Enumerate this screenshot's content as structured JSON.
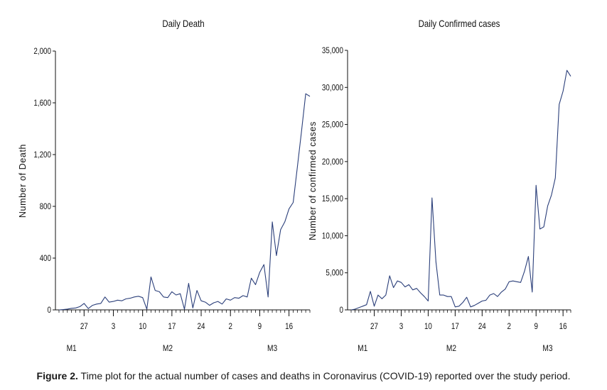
{
  "figure": {
    "caption_label": "Figure 2.",
    "caption_text": "Time plot for the actual number of cases and deaths in Coronavirus (COVID-19) reported over the study period."
  },
  "chart_data": [
    {
      "type": "line",
      "title": "Daily Death",
      "xlabel": "",
      "ylabel": "Number of Death",
      "ylim": [
        0,
        2000
      ],
      "yticks": [
        0,
        400,
        800,
        1200,
        1600,
        2000
      ],
      "ytick_labels": [
        "0",
        "400",
        "800",
        "1,200",
        "1,600",
        "2,000"
      ],
      "xtick_labels": [
        {
          "index": 6,
          "label": "27"
        },
        {
          "index": 13,
          "label": "3"
        },
        {
          "index": 20,
          "label": "10"
        },
        {
          "index": 27,
          "label": "17"
        },
        {
          "index": 34,
          "label": "24"
        },
        {
          "index": 41,
          "label": "2"
        },
        {
          "index": 48,
          "label": "9"
        },
        {
          "index": 55,
          "label": "16"
        }
      ],
      "month_labels": [
        {
          "index": 3,
          "label": "M1"
        },
        {
          "index": 26,
          "label": "M2"
        },
        {
          "index": 51,
          "label": "M3"
        }
      ],
      "grid": false,
      "color": "#2b3f7a",
      "series": [
        {
          "values": [
            0,
            2,
            6,
            12,
            15,
            25,
            50,
            10,
            35,
            45,
            50,
            100,
            60,
            65,
            75,
            70,
            85,
            90,
            100,
            105,
            95,
            5,
            255,
            150,
            140,
            100,
            95,
            140,
            115,
            125,
            5,
            205,
            15,
            150,
            70,
            60,
            35,
            55,
            65,
            45,
            85,
            75,
            95,
            90,
            110,
            100,
            245,
            195,
            290,
            350,
            100,
            680,
            420,
            620,
            680,
            780,
            830,
            1100,
            1380,
            1670,
            1650
          ]
        }
      ]
    },
    {
      "type": "line",
      "title": "Daily Confirmed cases",
      "xlabel": "",
      "ylabel": "Number of confirmed cases",
      "ylim": [
        0,
        35000
      ],
      "yticks": [
        0,
        5000,
        10000,
        15000,
        20000,
        25000,
        30000,
        35000
      ],
      "ytick_labels": [
        "0",
        "5,000",
        "10,000",
        "15,000",
        "20,000",
        "25,000",
        "30,000",
        "35,000"
      ],
      "xtick_labels": [
        {
          "index": 6,
          "label": "27"
        },
        {
          "index": 13,
          "label": "3"
        },
        {
          "index": 20,
          "label": "10"
        },
        {
          "index": 27,
          "label": "17"
        },
        {
          "index": 34,
          "label": "24"
        },
        {
          "index": 41,
          "label": "2"
        },
        {
          "index": 48,
          "label": "9"
        },
        {
          "index": 55,
          "label": "16"
        }
      ],
      "month_labels": [
        {
          "index": 3,
          "label": "M1"
        },
        {
          "index": 26,
          "label": "M2"
        },
        {
          "index": 51,
          "label": "M3"
        }
      ],
      "grid": false,
      "color": "#2b3f7a",
      "series": [
        {
          "values": [
            0,
            100,
            300,
            500,
            700,
            2500,
            500,
            2000,
            1500,
            2000,
            4600,
            3000,
            3900,
            3700,
            3100,
            3400,
            2700,
            2900,
            2300,
            1800,
            1200,
            15100,
            6500,
            2000,
            2000,
            1800,
            1800,
            400,
            500,
            1000,
            1700,
            400,
            600,
            900,
            1200,
            1300,
            2000,
            2200,
            1800,
            2400,
            2800,
            3800,
            3900,
            3800,
            3700,
            5200,
            7200,
            2400,
            16800,
            10900,
            11200,
            14000,
            15500,
            17800,
            27700,
            29500,
            32300,
            31500
          ]
        }
      ]
    }
  ]
}
